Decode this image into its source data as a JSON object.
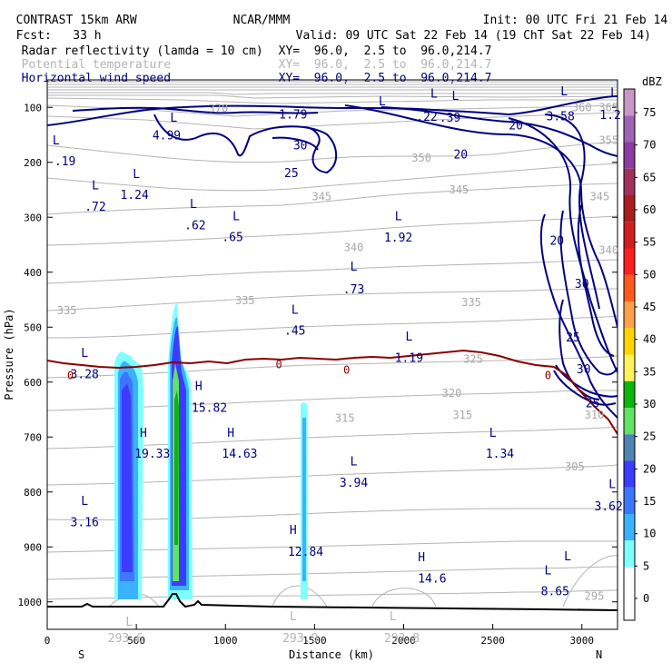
{
  "header": {
    "line1_left": "CONTRAST 15km ARW",
    "line1_mid": "NCAR/MMM",
    "line1_right": "Init: 00 UTC Fri 21 Feb 14",
    "line2_left": "Fcst:   33 h",
    "line2_right": "Valid: 09 UTC Sat 22 Feb 14 (19 ChT Sat 22 Feb 14)",
    "fields": [
      {
        "name": "Radar reflectivity (lamda = 10 cm)",
        "xy": "XY=  96.0,  2.5 to  96.0,214.7",
        "color": "#000000"
      },
      {
        "name": "Potential temperature",
        "xy": "XY=  96.0,  2.5 to  96.0,214.7",
        "color": "#b4b4b4"
      },
      {
        "name": "Horizontal wind speed",
        "xy": "XY=  96.0,  2.5 to  96.0,214.7",
        "color": "#000080"
      }
    ]
  },
  "chart_data": {
    "type": "cross-section",
    "ylabel": "Pressure (hPa)",
    "xlabel": "Distance (km)",
    "xlim": [
      0,
      3200
    ],
    "ylim": [
      1050,
      50
    ],
    "xticks": [
      0,
      500,
      1000,
      1500,
      2000,
      2500,
      3000
    ],
    "yticks": [
      100,
      200,
      300,
      400,
      500,
      600,
      700,
      800,
      900,
      1000
    ],
    "x_end_labels": {
      "left": "S",
      "right": "N"
    },
    "colorbar": {
      "title": "dBZ",
      "ticks": [
        "0",
        "5",
        "10",
        "15",
        "20",
        "25",
        "30",
        "35",
        "40",
        "45",
        "50",
        "55",
        "60",
        "65",
        "70",
        "75"
      ],
      "colors": [
        "#ffffff",
        "#ffffff",
        "#7fffff",
        "#3ab2ff",
        "#3b77ff",
        "#3c3cff",
        "#4f84b4",
        "#63e363",
        "#0cb40c",
        "#fff25a",
        "#ffd400",
        "#ffa04a",
        "#ff5a1e",
        "#ff1e1e",
        "#d21e1e",
        "#aa1e1e",
        "#a0325a",
        "#8c3ca0",
        "#a064b4",
        "#c896c8"
      ]
    },
    "theta_labels": [
      {
        "text": "370",
        "x": 960,
        "p": 102
      },
      {
        "text": "365",
        "x": 3150,
        "p": 100
      },
      {
        "text": "360",
        "x": 3000,
        "p": 100
      },
      {
        "text": "355",
        "x": 3150,
        "p": 160
      },
      {
        "text": "350",
        "x": 2100,
        "p": 192
      },
      {
        "text": "345",
        "x": 1540,
        "p": 262
      },
      {
        "text": "345",
        "x": 2310,
        "p": 250
      },
      {
        "text": "345",
        "x": 3100,
        "p": 262
      },
      {
        "text": "340",
        "x": 1720,
        "p": 355
      },
      {
        "text": "340",
        "x": 3150,
        "p": 360
      },
      {
        "text": "335",
        "x": 110,
        "p": 470
      },
      {
        "text": "335",
        "x": 1110,
        "p": 452
      },
      {
        "text": "335",
        "x": 2380,
        "p": 455
      },
      {
        "text": "325",
        "x": 2390,
        "p": 558
      },
      {
        "text": "320",
        "x": 2270,
        "p": 620
      },
      {
        "text": "315",
        "x": 1670,
        "p": 666
      },
      {
        "text": "315",
        "x": 2330,
        "p": 660
      },
      {
        "text": "310",
        "x": 3070,
        "p": 660
      },
      {
        "text": "305",
        "x": 2960,
        "p": 754
      },
      {
        "text": "295",
        "x": 3070,
        "p": 990
      },
      {
        "text": "0",
        "x": 130,
        "p": 588
      },
      {
        "text": "0",
        "x": 1300,
        "p": 568
      },
      {
        "text": "0",
        "x": 1680,
        "p": 578
      },
      {
        "text": "0",
        "x": 2810,
        "p": 588
      }
    ],
    "wind_labels": [
      {
        "text": "30",
        "x": 1420,
        "p": 168
      },
      {
        "text": "25",
        "x": 1370,
        "p": 219
      },
      {
        "text": "20",
        "x": 2320,
        "p": 185
      },
      {
        "text": "20",
        "x": 2630,
        "p": 132
      },
      {
        "text": "20",
        "x": 2860,
        "p": 342
      },
      {
        "text": "30",
        "x": 3000,
        "p": 420
      },
      {
        "text": "25",
        "x": 2950,
        "p": 518
      },
      {
        "text": "30",
        "x": 3010,
        "p": 576
      },
      {
        "text": "25",
        "x": 3060,
        "p": 638
      }
    ],
    "annotations": [
      {
        "text": "L",
        "x": 1880,
        "p": 88
      },
      {
        "text": "1.79",
        "x": 1380,
        "p": 112
      },
      {
        "text": "L",
        "x": 2170,
        "p": 74
      },
      {
        "text": ".22",
        "x": 2130,
        "p": 116
      },
      {
        "text": "L",
        "x": 2290,
        "p": 78
      },
      {
        "text": ".39",
        "x": 2260,
        "p": 118
      },
      {
        "text": "L",
        "x": 2900,
        "p": 70
      },
      {
        "text": "3.58",
        "x": 2880,
        "p": 115
      },
      {
        "text": "L",
        "x": 3180,
        "p": 72
      },
      {
        "text": "1.2",
        "x": 3160,
        "p": 113
      },
      {
        "text": "L",
        "x": 710,
        "p": 118
      },
      {
        "text": "4.99",
        "x": 670,
        "p": 150
      },
      {
        "text": "L",
        "x": 50,
        "p": 159
      },
      {
        "text": ".19",
        "x": 100,
        "p": 197
      },
      {
        "text": "L",
        "x": 500,
        "p": 220
      },
      {
        "text": "1.24",
        "x": 490,
        "p": 258
      },
      {
        "text": "L",
        "x": 270,
        "p": 241
      },
      {
        "text": ".72",
        "x": 270,
        "p": 280
      },
      {
        "text": "L",
        "x": 820,
        "p": 275
      },
      {
        "text": ".62",
        "x": 830,
        "p": 314
      },
      {
        "text": "L",
        "x": 1060,
        "p": 297
      },
      {
        "text": ".65",
        "x": 1040,
        "p": 335
      },
      {
        "text": "L",
        "x": 1970,
        "p": 297
      },
      {
        "text": "1.92",
        "x": 1970,
        "p": 336
      },
      {
        "text": "L",
        "x": 1720,
        "p": 389
      },
      {
        "text": ".73",
        "x": 1720,
        "p": 430
      },
      {
        "text": "L",
        "x": 1390,
        "p": 467
      },
      {
        "text": ".45",
        "x": 1390,
        "p": 505
      },
      {
        "text": "L",
        "x": 2030,
        "p": 516
      },
      {
        "text": "1.19",
        "x": 2030,
        "p": 555
      },
      {
        "text": "L",
        "x": 210,
        "p": 546
      },
      {
        "text": "3.28",
        "x": 210,
        "p": 585
      },
      {
        "text": "H",
        "x": 850,
        "p": 606
      },
      {
        "text": "15.82",
        "x": 910,
        "p": 646
      },
      {
        "text": "H",
        "x": 540,
        "p": 691
      },
      {
        "text": "19.33",
        "x": 590,
        "p": 729
      },
      {
        "text": "H",
        "x": 1030,
        "p": 691
      },
      {
        "text": "14.63",
        "x": 1080,
        "p": 729
      },
      {
        "text": "L",
        "x": 2500,
        "p": 691
      },
      {
        "text": "1.34",
        "x": 2540,
        "p": 729
      },
      {
        "text": "L",
        "x": 1720,
        "p": 743
      },
      {
        "text": "3.94",
        "x": 1720,
        "p": 782
      },
      {
        "text": "L",
        "x": 3170,
        "p": 785
      },
      {
        "text": "3.62",
        "x": 3150,
        "p": 825
      },
      {
        "text": "L",
        "x": 210,
        "p": 815
      },
      {
        "text": "3.16",
        "x": 210,
        "p": 854
      },
      {
        "text": "H",
        "x": 1380,
        "p": 868
      },
      {
        "text": "12.84",
        "x": 1450,
        "p": 908
      },
      {
        "text": "H",
        "x": 2100,
        "p": 918
      },
      {
        "text": "14.6",
        "x": 2160,
        "p": 957
      },
      {
        "text": "L",
        "x": 2810,
        "p": 942
      },
      {
        "text": "8.65",
        "x": 2850,
        "p": 980
      },
      {
        "text": "L",
        "x": 2920,
        "p": 916
      },
      {
        "text": "L",
        "x": 460,
        "p": 1035
      },
      {
        "text": "293.6",
        "x": 440,
        "p": 1065
      },
      {
        "text": "L",
        "x": 1380,
        "p": 1025
      },
      {
        "text": "293.9",
        "x": 1420,
        "p": 1065
      },
      {
        "text": "L",
        "x": 1940,
        "p": 1025
      },
      {
        "text": "293.8",
        "x": 1990,
        "p": 1065
      }
    ]
  }
}
